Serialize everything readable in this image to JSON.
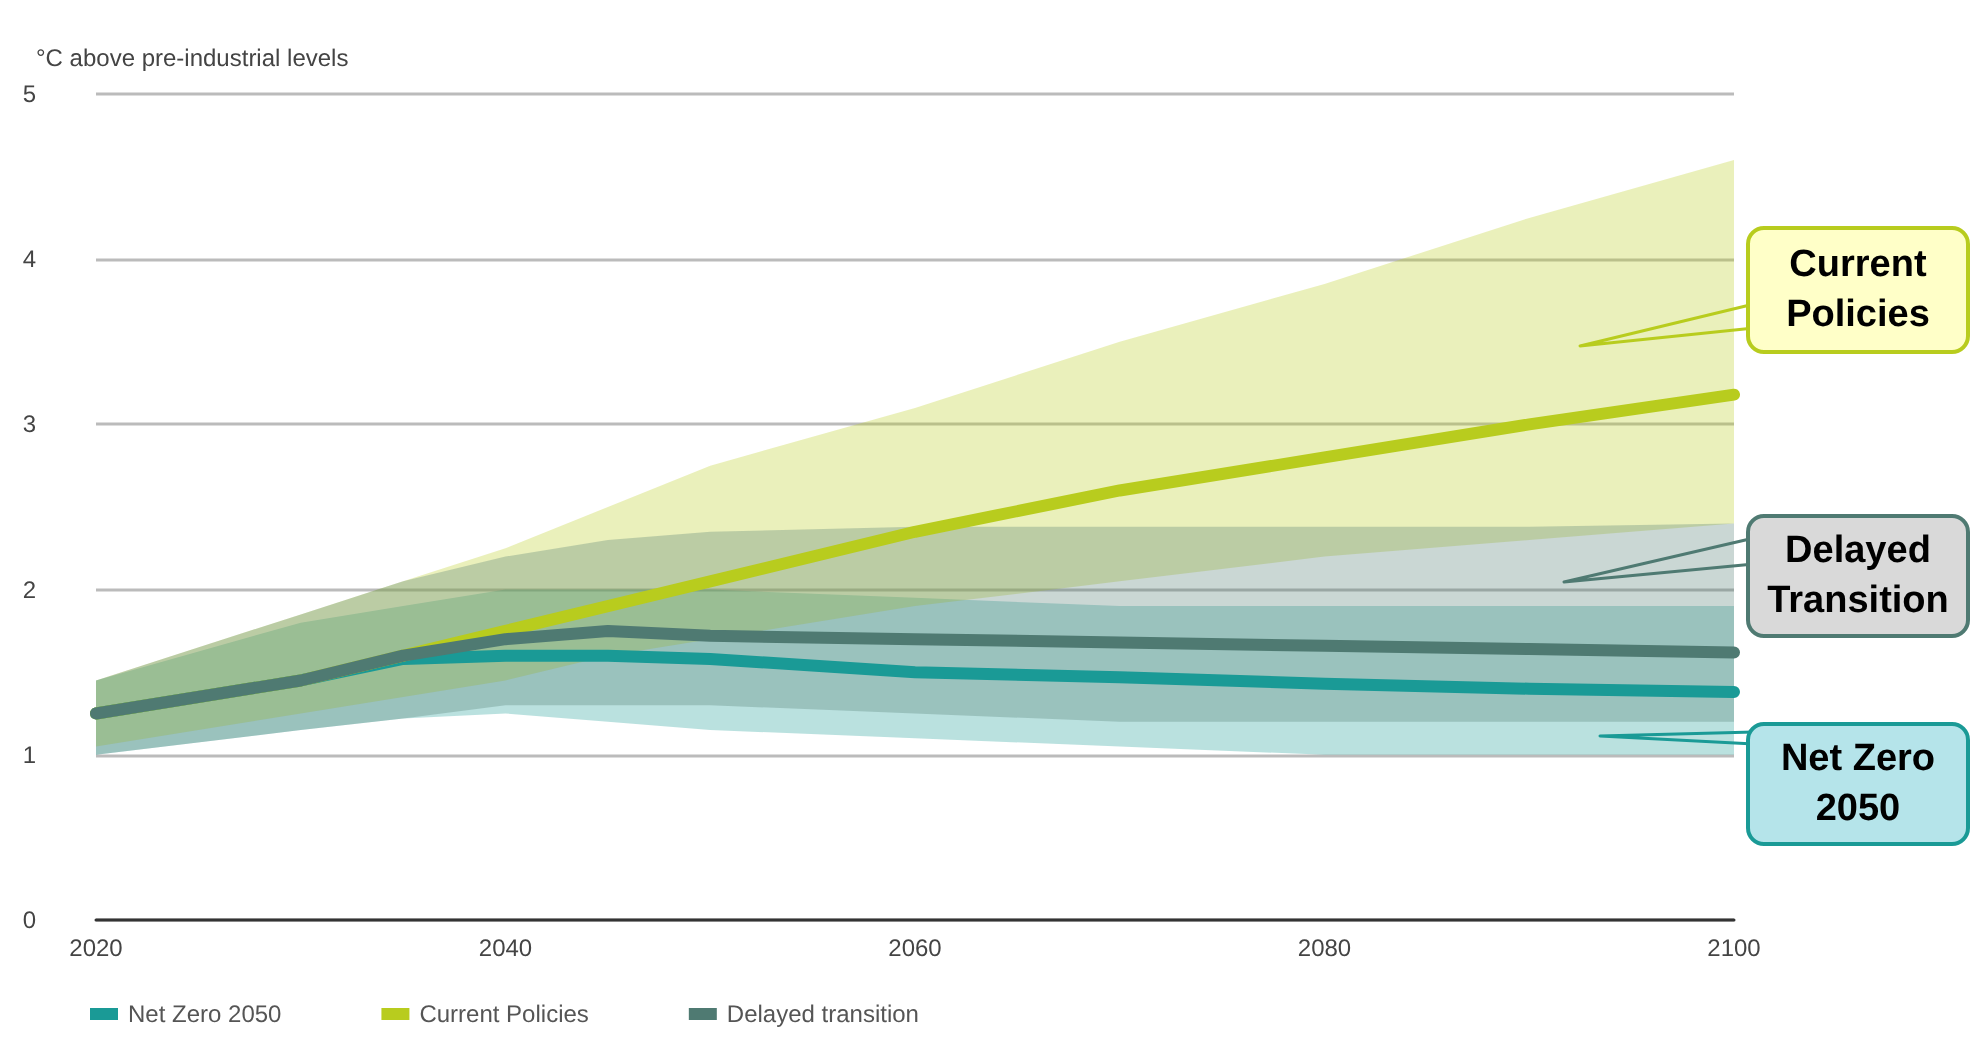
{
  "chart_data": {
    "type": "line",
    "ylabel": "°C above pre-industrial levels",
    "x": [
      2020,
      2030,
      2035,
      2040,
      2045,
      2050,
      2060,
      2070,
      2080,
      2090,
      2100
    ],
    "xlim": [
      2020,
      2100
    ],
    "xticks": [
      2020,
      2040,
      2060,
      2080,
      2100
    ],
    "ylim": [
      0,
      5
    ],
    "yticks": [
      0,
      1,
      2,
      3,
      4,
      5
    ],
    "grid": "y",
    "legend": "bottom left",
    "marker": "none",
    "line_style": "solid",
    "series": [
      {
        "name": "Net Zero 2050",
        "color": "#1a9a96",
        "values": [
          1.25,
          1.45,
          1.58,
          1.6,
          1.6,
          1.58,
          1.5,
          1.47,
          1.43,
          1.4,
          1.38
        ],
        "lower": [
          1.0,
          1.15,
          1.22,
          1.25,
          1.2,
          1.15,
          1.1,
          1.05,
          1.0,
          1.0,
          1.0
        ],
        "upper": [
          1.45,
          1.8,
          1.9,
          2.0,
          2.0,
          2.0,
          1.95,
          1.9,
          1.9,
          1.9,
          1.9
        ]
      },
      {
        "name": "Current Policies",
        "color": "#b8cc1e",
        "values": [
          1.25,
          1.45,
          1.6,
          1.75,
          1.9,
          2.05,
          2.35,
          2.6,
          2.8,
          3.0,
          3.18
        ],
        "lower": [
          1.05,
          1.25,
          1.35,
          1.45,
          1.6,
          1.7,
          1.9,
          2.05,
          2.2,
          2.3,
          2.4
        ],
        "upper": [
          1.45,
          1.85,
          2.05,
          2.25,
          2.5,
          2.75,
          3.1,
          3.5,
          3.85,
          4.25,
          4.6
        ]
      },
      {
        "name": "Delayed transition",
        "color": "#4f7a72",
        "values": [
          1.25,
          1.45,
          1.6,
          1.7,
          1.75,
          1.72,
          1.7,
          1.68,
          1.66,
          1.64,
          1.62
        ],
        "lower": [
          1.0,
          1.15,
          1.22,
          1.3,
          1.3,
          1.3,
          1.25,
          1.2,
          1.2,
          1.2,
          1.2
        ],
        "upper": [
          1.45,
          1.85,
          2.05,
          2.2,
          2.3,
          2.35,
          2.38,
          2.38,
          2.38,
          2.38,
          2.4
        ]
      }
    ],
    "annotations": [
      "Current\nPolicies",
      "Delayed\nTransition",
      "Net Zero\n2050"
    ]
  }
}
